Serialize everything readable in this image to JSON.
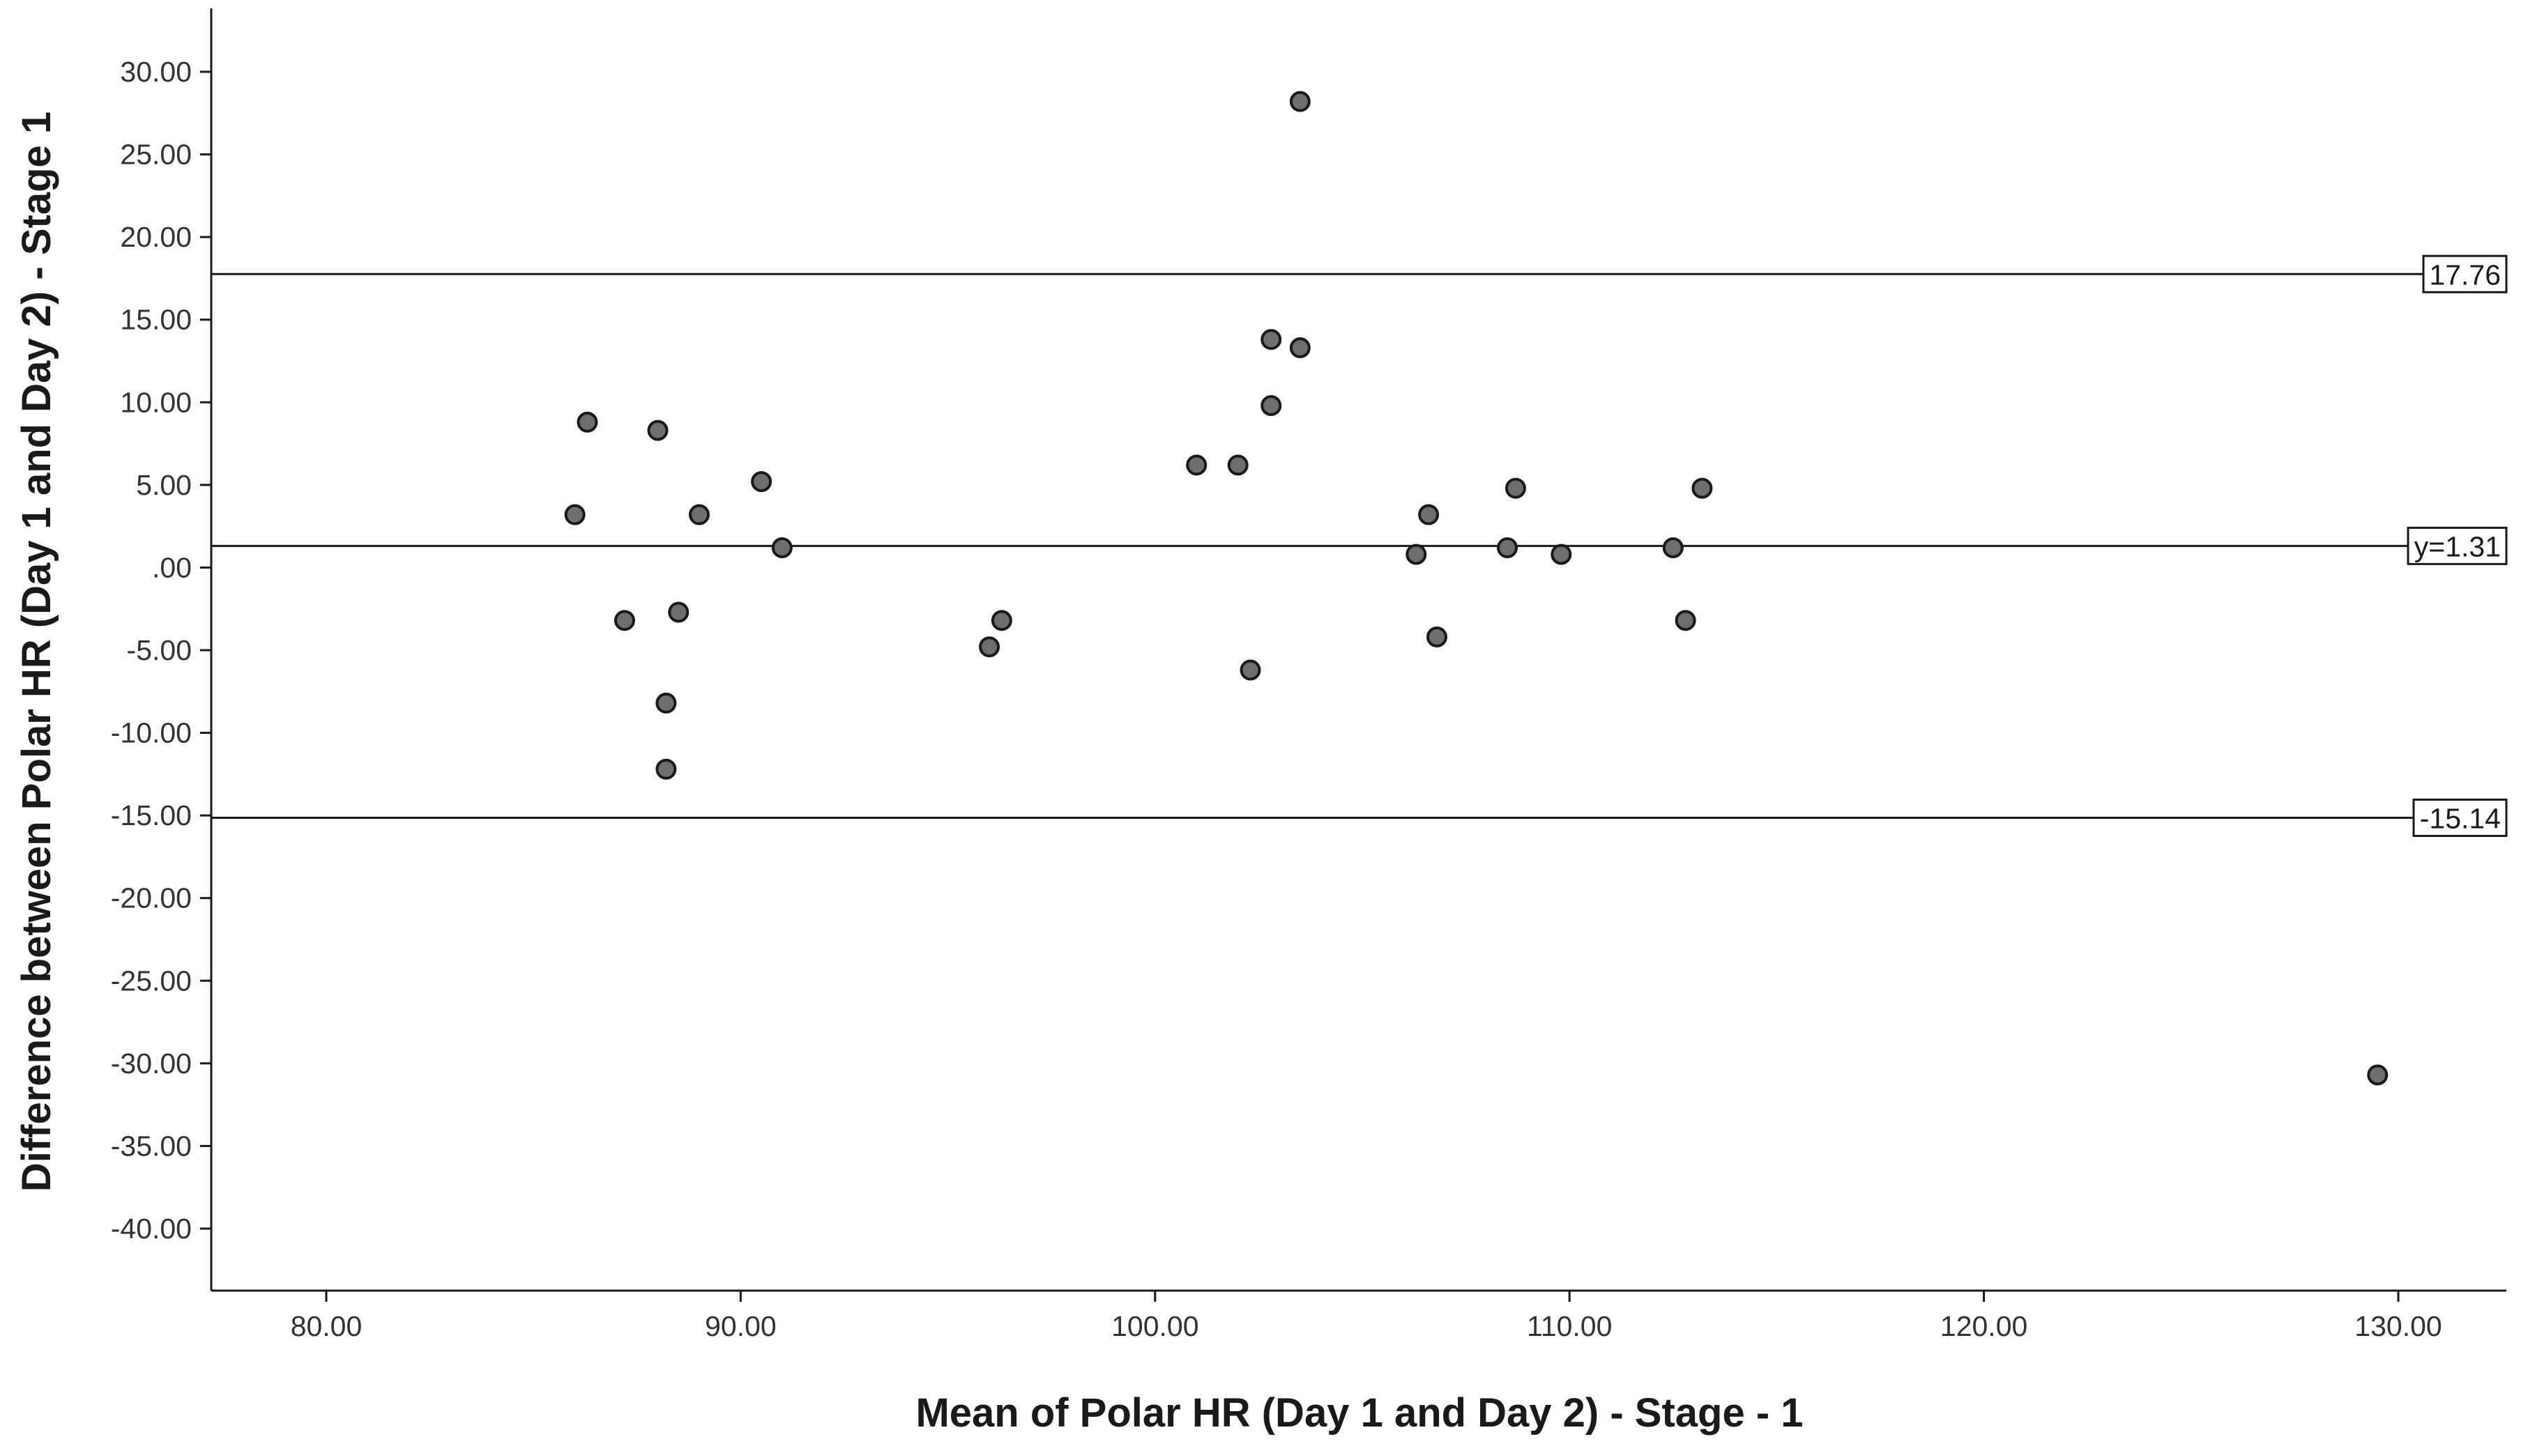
{
  "chart_data": {
    "type": "scatter",
    "xlabel": "Mean of Polar HR  (Day 1 and Day 2) - Stage - 1",
    "ylabel": "Difference between Polar HR (Day 1 and Day 2) - Stage 1",
    "xlim": [
      77.5,
      132.5
    ],
    "ylim": [
      -43.5,
      34
    ],
    "grid": false,
    "x_ticks": [
      80,
      90,
      100,
      110,
      120,
      130
    ],
    "x_tick_labels": [
      "80.00",
      "90.00",
      "100.00",
      "110.00",
      "120.00",
      "130.00"
    ],
    "y_ticks": [
      30,
      25,
      20,
      15,
      10,
      5,
      0,
      -5,
      -10,
      -15,
      -20,
      -25,
      -30,
      -35,
      -40
    ],
    "y_tick_labels": [
      "30.00",
      "25.00",
      "20.00",
      "15.00",
      "10.00",
      "5.00",
      ".00",
      "-5.00",
      "-10.00",
      "-15.00",
      "-20.00",
      "-25.00",
      "-30.00",
      "-35.00",
      "-40.00"
    ],
    "reference_lines": [
      {
        "y": 17.76,
        "label": "17.76"
      },
      {
        "y": 1.31,
        "label": "y=1.31"
      },
      {
        "y": -15.14,
        "label": "-15.14"
      }
    ],
    "marker_color": "#6e6e6e",
    "marker_edge_color": "#1a1a1a",
    "points": [
      {
        "x": 86.0,
        "y": 3.2
      },
      {
        "x": 86.3,
        "y": 8.8
      },
      {
        "x": 87.2,
        "y": -3.2
      },
      {
        "x": 88.0,
        "y": 8.3
      },
      {
        "x": 88.2,
        "y": -8.2
      },
      {
        "x": 88.2,
        "y": -12.2
      },
      {
        "x": 88.5,
        "y": -2.7
      },
      {
        "x": 89.0,
        "y": 3.2
      },
      {
        "x": 90.5,
        "y": 5.2
      },
      {
        "x": 91.0,
        "y": 1.2
      },
      {
        "x": 96.0,
        "y": -4.8
      },
      {
        "x": 96.3,
        "y": -3.2
      },
      {
        "x": 101.0,
        "y": 6.2
      },
      {
        "x": 102.0,
        "y": 6.2
      },
      {
        "x": 102.3,
        "y": -6.2
      },
      {
        "x": 102.8,
        "y": 13.8
      },
      {
        "x": 102.8,
        "y": 9.8
      },
      {
        "x": 103.5,
        "y": 13.3
      },
      {
        "x": 103.5,
        "y": 28.2
      },
      {
        "x": 106.3,
        "y": 0.8
      },
      {
        "x": 106.6,
        "y": 3.2
      },
      {
        "x": 106.8,
        "y": -4.2
      },
      {
        "x": 108.5,
        "y": 1.2
      },
      {
        "x": 108.7,
        "y": 4.8
      },
      {
        "x": 109.8,
        "y": 0.8
      },
      {
        "x": 112.5,
        "y": 1.2
      },
      {
        "x": 112.8,
        "y": -3.2
      },
      {
        "x": 113.2,
        "y": 4.8
      },
      {
        "x": 129.5,
        "y": -30.7
      }
    ]
  }
}
